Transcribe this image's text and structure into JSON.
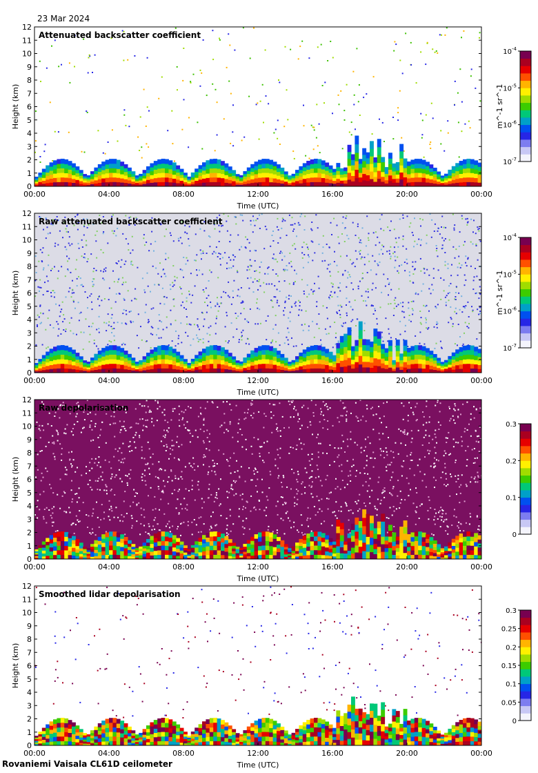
{
  "date": "23 Mar 2024",
  "footer": "Rovaniemi Vaisala CL61D ceilometer",
  "chart_data": [
    {
      "type": "heatmap",
      "title": "Attenuated backscatter coefficient",
      "xlabel": "Time (UTC)",
      "ylabel": "Height (km)",
      "xticks": [
        "00:00",
        "04:00",
        "08:00",
        "12:00",
        "16:00",
        "20:00",
        "00:00"
      ],
      "yticks": [
        0,
        1,
        2,
        3,
        4,
        5,
        6,
        7,
        8,
        9,
        10,
        11,
        12
      ],
      "ylim": [
        0,
        12
      ],
      "colorbar": {
        "scale": "log",
        "ticks": [
          "10^-7",
          "10^-6",
          "10^-5",
          "10^-4"
        ],
        "range": [
          1e-07,
          0.0001
        ],
        "unit": "m^-1 sr^-1"
      }
    },
    {
      "type": "heatmap",
      "title": "Raw attenuated backscatter coefficient",
      "xlabel": "Time (UTC)",
      "ylabel": "Height (km)",
      "xticks": [
        "00:00",
        "04:00",
        "08:00",
        "12:00",
        "16:00",
        "20:00",
        "00:00"
      ],
      "yticks": [
        0,
        1,
        2,
        3,
        4,
        5,
        6,
        7,
        8,
        9,
        10,
        11,
        12
      ],
      "ylim": [
        0,
        12
      ],
      "colorbar": {
        "scale": "log",
        "ticks": [
          "10^-7",
          "10^-6",
          "10^-5",
          "10^-4"
        ],
        "range": [
          1e-07,
          0.0001
        ],
        "unit": "m^-1 sr^-1"
      }
    },
    {
      "type": "heatmap",
      "title": "Raw depolarisation",
      "xlabel": "Time (UTC)",
      "ylabel": "Height (km)",
      "xticks": [
        "00:00",
        "04:00",
        "08:00",
        "12:00",
        "16:00",
        "20:00",
        "00:00"
      ],
      "yticks": [
        0,
        1,
        2,
        3,
        4,
        5,
        6,
        7,
        8,
        9,
        10,
        11,
        12
      ],
      "ylim": [
        0,
        12
      ],
      "colorbar": {
        "scale": "linear",
        "ticks": [
          "0",
          "0.1",
          "0.2",
          "0.3"
        ],
        "range": [
          0,
          0.3
        ],
        "unit": ""
      }
    },
    {
      "type": "heatmap",
      "title": "Smoothed lidar depolarisation",
      "xlabel": "Time (UTC)",
      "ylabel": "Height (km)",
      "xticks": [
        "00:00",
        "04:00",
        "08:00",
        "12:00",
        "16:00",
        "20:00",
        "00:00"
      ],
      "yticks": [
        0,
        1,
        2,
        3,
        4,
        5,
        6,
        7,
        8,
        9,
        10,
        11,
        12
      ],
      "ylim": [
        0,
        12
      ],
      "colorbar": {
        "scale": "linear",
        "ticks": [
          "0",
          "0.05",
          "0.1",
          "0.15",
          "0.2",
          "0.25",
          "0.3"
        ],
        "range": [
          0,
          0.3
        ],
        "unit": ""
      }
    }
  ]
}
